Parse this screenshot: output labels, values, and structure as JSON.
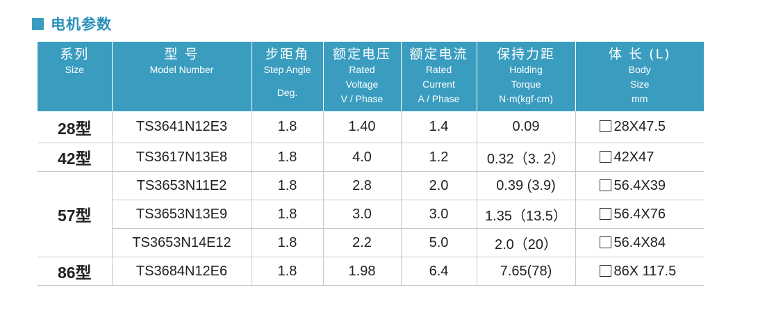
{
  "section_title": "电机参数",
  "headers": [
    {
      "zh": "系列",
      "en": [
        "Size"
      ],
      "extra": ""
    },
    {
      "zh": "型 号",
      "en": [
        "Model Number"
      ],
      "extra": ""
    },
    {
      "zh": "步距角",
      "en": [
        "Step Angle"
      ],
      "extra": "Deg."
    },
    {
      "zh": "额定电压",
      "en": [
        "Rated",
        "Voltage",
        "V / Phase"
      ],
      "extra": ""
    },
    {
      "zh": "额定电流",
      "en": [
        "Rated",
        "Current",
        "A / Phase"
      ],
      "extra": ""
    },
    {
      "zh": "保持力距",
      "en": [
        "Holding",
        "Torque",
        "N·m(kgf·cm)"
      ],
      "extra": ""
    },
    {
      "zh": "体 长 (L)",
      "en": [
        "Body",
        "Size",
        "mm"
      ],
      "extra": ""
    }
  ],
  "rows": [
    {
      "series": "28型",
      "model": "TS3641N12E3",
      "step": "1.8",
      "voltage": "1.40",
      "current": "1.4",
      "torque": "0.09",
      "body": "28X47.5"
    },
    {
      "series": "42型",
      "model": "TS3617N13E8",
      "step": "1.8",
      "voltage": "4.0",
      "current": "1.2",
      "torque": "0.32（3. 2）",
      "body": "42X47"
    },
    {
      "series": "57型",
      "model": "TS3653N11E2",
      "step": "1.8",
      "voltage": "2.8",
      "current": "2.0",
      "torque": "0.39 (3.9)",
      "body": "56.4X39"
    },
    {
      "series": "",
      "model": "TS3653N13E9",
      "step": "1.8",
      "voltage": "3.0",
      "current": "3.0",
      "torque": "1.35（13.5）",
      "body": "56.4X76"
    },
    {
      "series": "",
      "model": "TS3653N14E12",
      "step": "1.8",
      "voltage": "2.2",
      "current": "5.0",
      "torque": "2.0（20）",
      "body": "56.4X84"
    },
    {
      "series": "86型",
      "model": "TS3684N12E6",
      "step": "1.8",
      "voltage": "1.98",
      "current": "6.4",
      "torque": "7.65(78)",
      "body": "86X 117.5"
    }
  ]
}
